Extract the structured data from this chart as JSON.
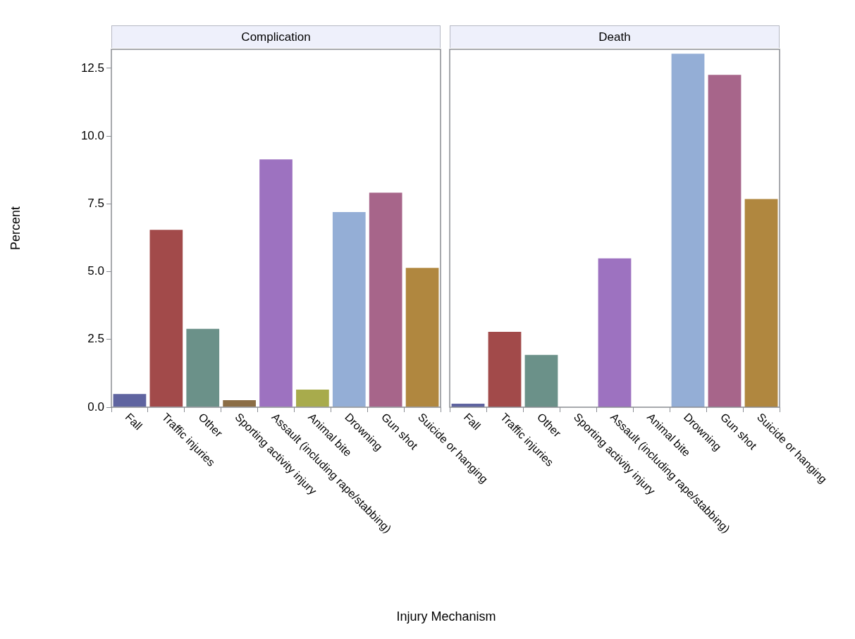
{
  "chart_data": [
    {
      "type": "bar",
      "title": "Complication",
      "xlabel": "Injury Mechanism",
      "ylabel": "Percent",
      "categories": [
        "Fall",
        "Traffic injuries",
        "Other",
        "Sporting activity injury",
        "Assault (including rape/stabbing)",
        "Animal bite",
        "Drowning",
        "Gun shot",
        "Suicide or hanging"
      ],
      "values": [
        0.49,
        6.54,
        2.89,
        0.26,
        9.14,
        0.65,
        7.2,
        7.91,
        5.14
      ],
      "colors": [
        "#5f64a0",
        "#a24a4a",
        "#6b9189",
        "#8b6d45",
        "#9d72c0",
        "#a8ab4c",
        "#94aed6",
        "#a7658a",
        "#b0873f"
      ],
      "ylim": [
        0,
        13.2
      ],
      "yticks": [
        {
          "value": 0,
          "label": "0.0"
        },
        {
          "value": 2.5,
          "label": "2.5"
        },
        {
          "value": 5,
          "label": "5.0"
        },
        {
          "value": 7.5,
          "label": "7.5"
        },
        {
          "value": 10,
          "label": "10.0"
        },
        {
          "value": 12.5,
          "label": "12.5"
        }
      ],
      "grid": false,
      "legend": false
    },
    {
      "type": "bar",
      "title": "Death",
      "categories": [
        "Fall",
        "Traffic injuries",
        "Other",
        "Sporting activity injury",
        "Assault (including rape/stabbing)",
        "Animal bite",
        "Drowning",
        "Gun shot",
        "Suicide or hanging"
      ],
      "values": [
        0.13,
        2.78,
        1.93,
        0,
        5.49,
        0,
        13.04,
        12.26,
        7.68
      ],
      "colors": [
        "#5f64a0",
        "#a24a4a",
        "#6b9189",
        "#8b6d45",
        "#9d72c0",
        "#a8ab4c",
        "#94aed6",
        "#a7658a",
        "#b0873f"
      ],
      "ylim": [
        0,
        13.2
      ],
      "tick_labels": "x",
      "grid": false,
      "legend": false
    }
  ]
}
